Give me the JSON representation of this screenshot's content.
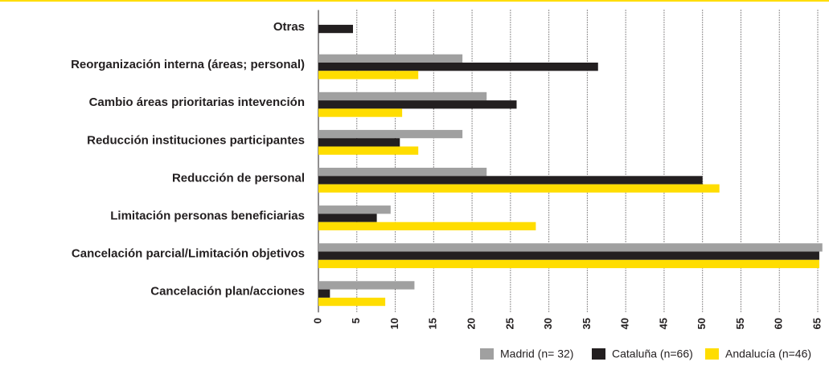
{
  "chart_data": {
    "type": "hbar",
    "categories": [
      "Otras",
      "Reorganización interna (áreas; personal)",
      "Cambio áreas prioritarias intevención",
      "Reducción instituciones participantes",
      "Reducción de personal",
      "Limitación personas beneficiarias",
      "Cancelación parcial/Limitación objetivos",
      "Cancelación plan/acciones"
    ],
    "series": [
      {
        "name": "Madrid (n= 32)",
        "color": "#a0a0a0",
        "values": [
          0,
          18.75,
          21.9,
          18.75,
          21.9,
          9.4,
          65.6,
          12.5
        ]
      },
      {
        "name": "Cataluña (n=66)",
        "color": "#231f20",
        "values": [
          4.5,
          36.4,
          25.8,
          10.6,
          50,
          7.6,
          65.2,
          1.5
        ]
      },
      {
        "name": "Andalucía (n=46)",
        "color": "#ffdd00",
        "values": [
          0,
          13,
          10.9,
          13,
          52.2,
          28.3,
          65.2,
          8.7
        ]
      }
    ],
    "xlim": [
      0,
      66
    ],
    "xticks": [
      0,
      5,
      10,
      15,
      20,
      25,
      30,
      35,
      40,
      45,
      50,
      55,
      60,
      65
    ],
    "grid": true,
    "legend": "bottom-right"
  }
}
